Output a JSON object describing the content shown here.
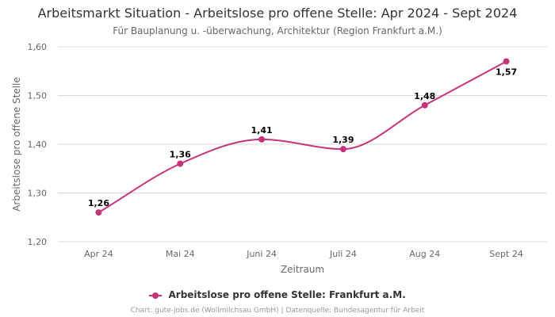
{
  "chart_data": {
    "type": "line",
    "title": "Arbeitsmarkt Situation - Arbeitslose pro offene Stelle: Apr 2024 - Sept 2024",
    "subtitle": "Für Bauplanung u. -überwachung, Architektur (Region Frankfurt a.M.)",
    "xlabel": "Zeitraum",
    "ylabel": "Arbeitslose pro offene Stelle",
    "categories": [
      "Apr 24",
      "Mai 24",
      "Juni 24",
      "Juli 24",
      "Aug 24",
      "Sept 24"
    ],
    "series": [
      {
        "name": "Arbeitslose pro offene Stelle: Frankfurt a.M.",
        "values": [
          1.26,
          1.36,
          1.41,
          1.39,
          1.48,
          1.57
        ],
        "labels": [
          "1,26",
          "1,36",
          "1,41",
          "1,39",
          "1,48",
          "1,57"
        ],
        "color": "#c8327a"
      }
    ],
    "ylim": [
      1.2,
      1.6
    ],
    "yticks": [
      1.2,
      1.3,
      1.4,
      1.5,
      1.6
    ],
    "ytick_labels": [
      "1,20",
      "1,30",
      "1,40",
      "1,50",
      "1,60"
    ],
    "grid": true,
    "legend": "bottom-center"
  },
  "credits": "Chart: gute-jobs.de (Wollmilchsau GmbH) | Datenquelle: Bundesagentur für Arbeit"
}
